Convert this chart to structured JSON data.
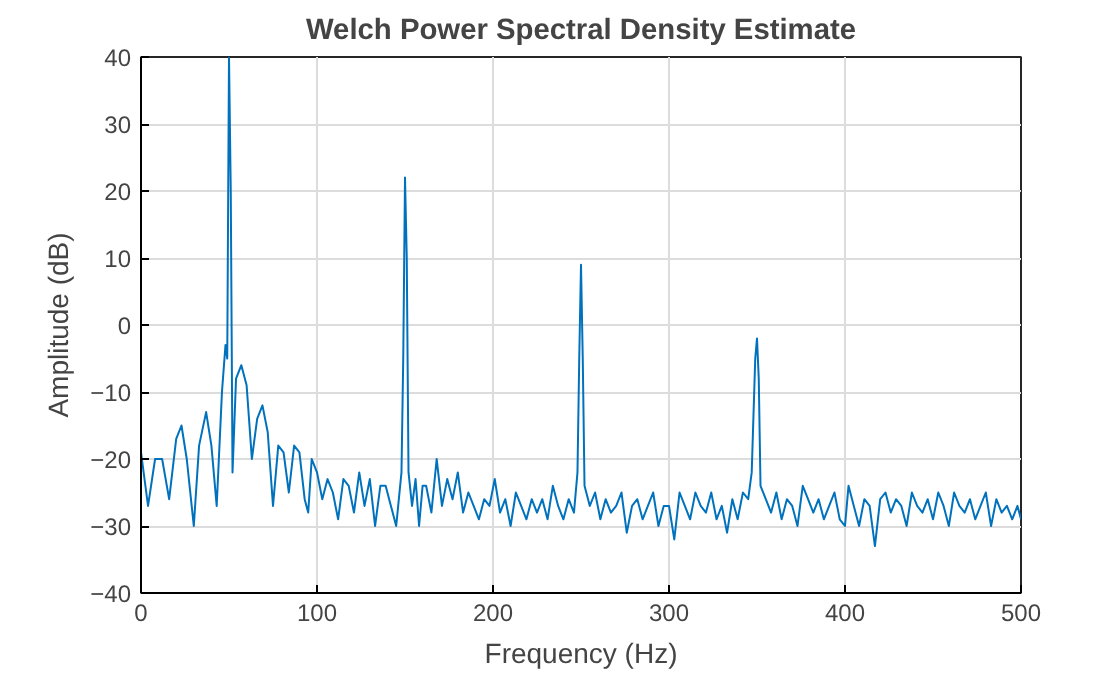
{
  "chart_data": {
    "type": "line",
    "title": "Welch Power Spectral Density Estimate",
    "xlabel": "Frequency (Hz)",
    "ylabel": "Amplitude (dB)",
    "xlim": [
      0,
      500
    ],
    "ylim": [
      -40,
      40
    ],
    "xticks": [
      0,
      100,
      200,
      300,
      400,
      500
    ],
    "yticks": [
      -40,
      -30,
      -20,
      -10,
      0,
      10,
      20,
      30,
      40
    ],
    "grid": true,
    "series": [
      {
        "color": "#0072bd",
        "x": [
          0,
          4,
          8,
          12,
          16,
          20,
          23,
          26,
          30,
          33,
          37,
          40,
          43,
          46,
          48,
          49,
          50,
          51,
          52,
          54,
          57,
          60,
          63,
          66,
          69,
          72,
          75,
          78,
          81,
          84,
          87,
          90,
          93,
          95,
          97,
          100,
          103,
          106,
          109,
          112,
          115,
          118,
          121,
          124,
          127,
          130,
          133,
          136,
          139,
          142,
          145,
          148,
          149,
          150,
          151,
          152,
          154,
          156,
          158,
          160,
          162,
          165,
          168,
          171,
          174,
          177,
          180,
          183,
          186,
          189,
          192,
          195,
          198,
          201,
          204,
          207,
          210,
          213,
          216,
          219,
          222,
          225,
          228,
          231,
          234,
          237,
          240,
          243,
          246,
          248,
          249,
          250,
          251,
          252,
          255,
          258,
          261,
          264,
          267,
          270,
          273,
          276,
          279,
          282,
          285,
          288,
          291,
          294,
          297,
          300,
          303,
          306,
          309,
          312,
          315,
          318,
          321,
          324,
          327,
          330,
          333,
          336,
          339,
          342,
          345,
          347,
          349,
          350,
          351,
          352,
          355,
          358,
          361,
          364,
          367,
          370,
          373,
          376,
          379,
          382,
          385,
          388,
          391,
          394,
          397,
          400,
          402,
          405,
          408,
          411,
          414,
          417,
          420,
          423,
          426,
          429,
          432,
          435,
          438,
          441,
          444,
          447,
          450,
          453,
          456,
          459,
          462,
          465,
          468,
          471,
          474,
          477,
          480,
          483,
          486,
          489,
          492,
          495,
          498,
          500
        ],
        "values": [
          -19,
          -27,
          -20,
          -20,
          -26,
          -17,
          -15,
          -20,
          -30,
          -18,
          -13,
          -18,
          -27,
          -10,
          -3,
          -5,
          40,
          20,
          -22,
          -8,
          -6,
          -9,
          -20,
          -14,
          -12,
          -16,
          -27,
          -18,
          -19,
          -25,
          -18,
          -19,
          -26,
          -28,
          -20,
          -22,
          -26,
          -23,
          -25,
          -29,
          -23,
          -24,
          -28,
          -22,
          -27,
          -23,
          -30,
          -24,
          -24,
          -27,
          -30,
          -22,
          -5,
          22,
          10,
          -22,
          -27,
          -23,
          -30,
          -24,
          -24,
          -28,
          -20,
          -27,
          -23,
          -26,
          -22,
          -28,
          -25,
          -27,
          -29,
          -26,
          -27,
          -23,
          -28,
          -26,
          -30,
          -25,
          -27,
          -29,
          -26,
          -28,
          -26,
          -29,
          -24,
          -27,
          -29,
          -26,
          -28,
          -22,
          -5,
          9,
          -5,
          -24,
          -27,
          -25,
          -29,
          -26,
          -28,
          -27,
          -25,
          -31,
          -27,
          -26,
          -29,
          -27,
          -25,
          -30,
          -27,
          -27,
          -32,
          -25,
          -27,
          -29,
          -25,
          -27,
          -28,
          -25,
          -29,
          -27,
          -31,
          -26,
          -29,
          -25,
          -26,
          -22,
          -5,
          -2,
          -8,
          -24,
          -26,
          -28,
          -25,
          -29,
          -26,
          -27,
          -30,
          -24,
          -26,
          -28,
          -26,
          -29,
          -27,
          -25,
          -29,
          -30,
          -24,
          -27,
          -30,
          -26,
          -27,
          -33,
          -26,
          -25,
          -28,
          -26,
          -27,
          -30,
          -25,
          -27,
          -28,
          -26,
          -29,
          -25,
          -27,
          -30,
          -25,
          -27,
          -28,
          -26,
          -29,
          -27,
          -25,
          -30,
          -26,
          -28,
          -27,
          -29,
          -27,
          -29
        ]
      }
    ]
  }
}
